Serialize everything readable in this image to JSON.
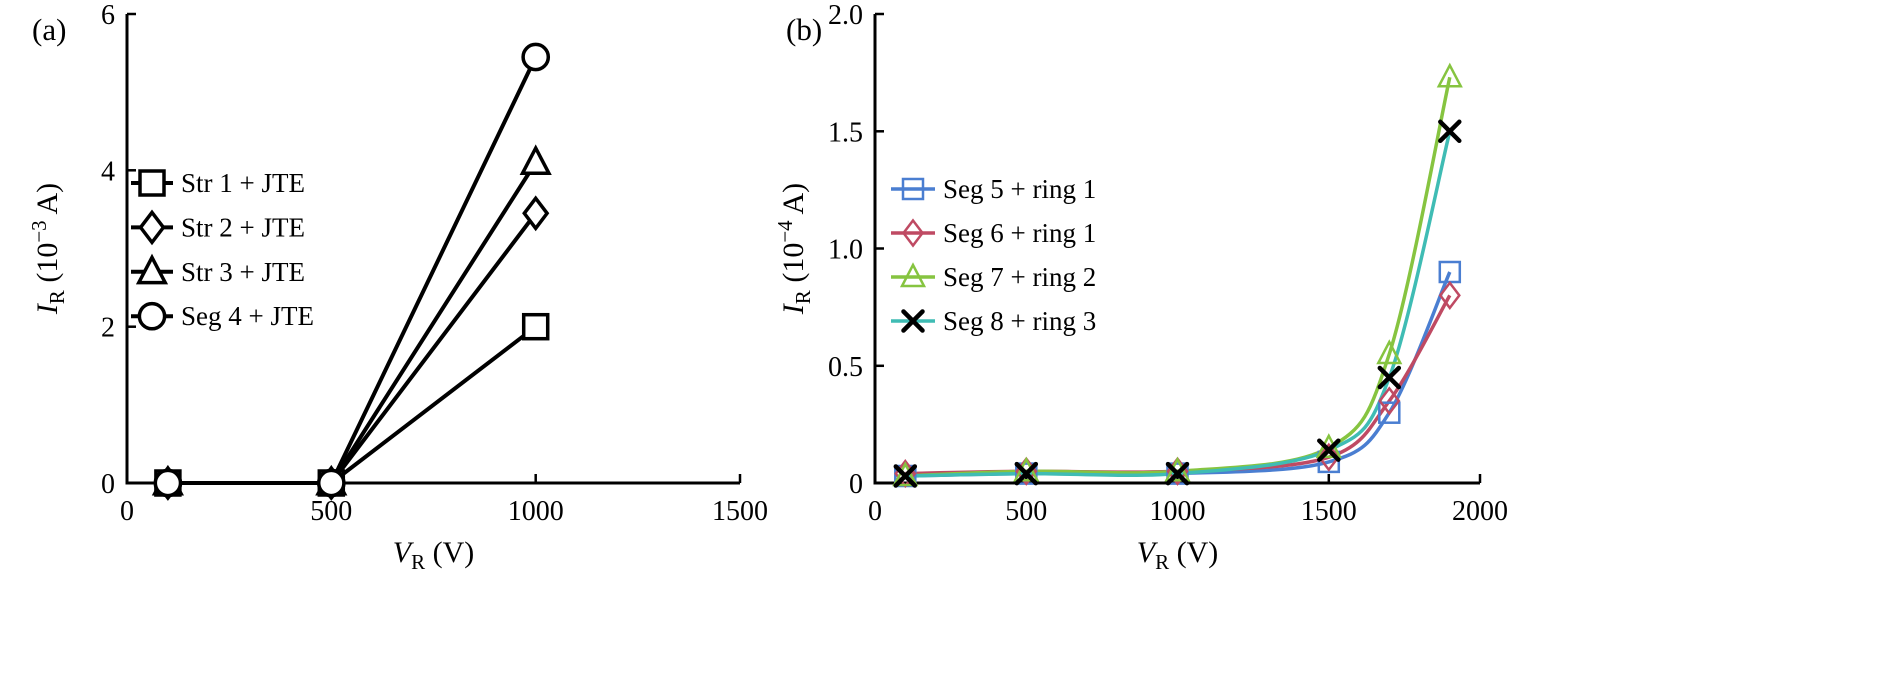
{
  "figure": {
    "background": "#ffffff",
    "text_color": "#000000",
    "axis_color": "#000000"
  },
  "chart_data": [
    {
      "type": "line",
      "panel_label": "(a)",
      "xlabel": {
        "var": "V",
        "sub": "R",
        "rest": " (V)"
      },
      "ylabel": {
        "var": "I",
        "sub": "R",
        "rest_pre": " (10",
        "exp": "−3",
        "rest_post": " A)"
      },
      "xlim": [
        0,
        1500
      ],
      "ylim": [
        0,
        6
      ],
      "xticks": [
        {
          "v": 0,
          "label": "0"
        },
        {
          "v": 500,
          "label": "500"
        },
        {
          "v": 1000,
          "label": "1000"
        },
        {
          "v": 1500,
          "label": "1500"
        }
      ],
      "yticks": [
        {
          "v": 0,
          "label": "0"
        },
        {
          "v": 2,
          "label": "2"
        },
        {
          "v": 4,
          "label": "4"
        },
        {
          "v": 6,
          "label": "6"
        }
      ],
      "x": [
        100,
        500,
        1000
      ],
      "series": [
        {
          "name": "Str 1 + JTE",
          "marker": "square",
          "line_color": "#000000",
          "marker_color": "#000000",
          "values": [
            0,
            0,
            2.0
          ],
          "smooth": false
        },
        {
          "name": "Str 2 + JTE",
          "marker": "diamond",
          "line_color": "#000000",
          "marker_color": "#000000",
          "values": [
            0,
            0,
            3.45
          ],
          "smooth": false
        },
        {
          "name": "Str 3 + JTE",
          "marker": "triangle",
          "line_color": "#000000",
          "marker_color": "#000000",
          "values": [
            0,
            0,
            4.1
          ],
          "smooth": false
        },
        {
          "name": "Seg 4 + JTE",
          "marker": "circle",
          "line_color": "#000000",
          "marker_color": "#000000",
          "values": [
            0,
            0,
            5.45
          ],
          "smooth": false
        }
      ],
      "legend_position": "inside-left-middle",
      "grid": false
    },
    {
      "type": "line",
      "panel_label": "(b)",
      "xlabel": {
        "var": "V",
        "sub": "R",
        "rest": " (V)"
      },
      "ylabel": {
        "var": "I",
        "sub": "R",
        "rest_pre": " (10",
        "exp": "−4",
        "rest_post": " A)"
      },
      "xlim": [
        0,
        2000
      ],
      "ylim": [
        0,
        2.0
      ],
      "xticks": [
        {
          "v": 0,
          "label": "0"
        },
        {
          "v": 500,
          "label": "500"
        },
        {
          "v": 1000,
          "label": "1000"
        },
        {
          "v": 1500,
          "label": "1500"
        },
        {
          "v": 2000,
          "label": "2000"
        }
      ],
      "yticks": [
        {
          "v": 0,
          "label": "0"
        },
        {
          "v": 0.5,
          "label": "0.5"
        },
        {
          "v": 1.0,
          "label": "1.0"
        },
        {
          "v": 1.5,
          "label": "1.5"
        },
        {
          "v": 2.0,
          "label": "2.0"
        }
      ],
      "x": [
        100,
        500,
        1000,
        1500,
        1700,
        1900
      ],
      "series": [
        {
          "name": "Seg 5 + ring 1",
          "marker": "square",
          "line_color": "#4a7ed1",
          "marker_color": "#4a7ed1",
          "values": [
            0.03,
            0.04,
            0.04,
            0.09,
            0.3,
            0.9
          ],
          "smooth": true
        },
        {
          "name": "Seg 6 + ring 1",
          "marker": "diamond",
          "line_color": "#bf4a63",
          "marker_color": "#bf4a63",
          "values": [
            0.04,
            0.05,
            0.05,
            0.11,
            0.35,
            0.8
          ],
          "smooth": true
        },
        {
          "name": "Seg 7 + ring 2",
          "marker": "triangle",
          "line_color": "#86c440",
          "marker_color": "#86c440",
          "values": [
            0.03,
            0.05,
            0.05,
            0.15,
            0.55,
            1.73
          ],
          "smooth": true
        },
        {
          "name": "Seg 8 + ring 3",
          "marker": "x",
          "line_color": "#3fbcb4",
          "marker_color": "#000000",
          "values": [
            0.03,
            0.04,
            0.04,
            0.14,
            0.45,
            1.5
          ],
          "smooth": true
        }
      ],
      "legend_position": "inside-left-middle",
      "grid": false
    }
  ]
}
